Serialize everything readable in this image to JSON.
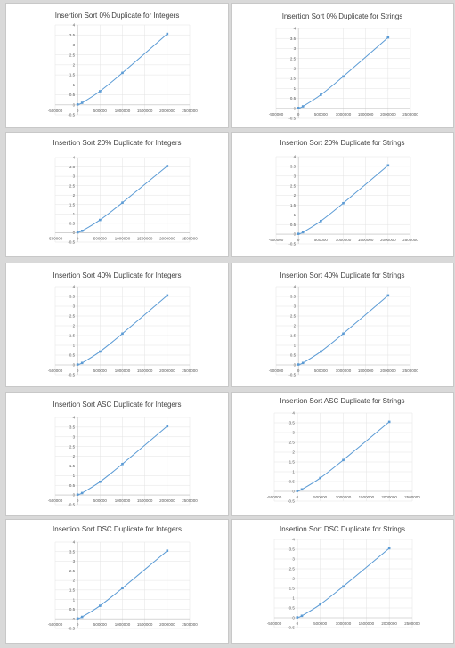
{
  "colors": {
    "series": "#5b9bd5",
    "background": "#d9d9d9"
  },
  "chart_data": [
    {
      "type": "scatter",
      "title": "Insertion Sort 0% Duplicate for Integers",
      "x_ticks": [
        "-500000",
        "0",
        "500000",
        "1000000",
        "1500000",
        "2000000",
        "2500000"
      ],
      "y_ticks": [
        "-0.5",
        "0",
        "0.5",
        "1",
        "1.5",
        "2",
        "2.5",
        "3",
        "3.5",
        "4"
      ],
      "xlim": [
        -500000,
        2500000
      ],
      "ylim": [
        -0.5,
        4
      ],
      "grid": true,
      "smooth": true,
      "x": [
        0,
        100000,
        500000,
        1000000,
        2000000
      ],
      "y": [
        0.02,
        0.1,
        0.68,
        1.6,
        3.55
      ]
    },
    {
      "type": "scatter",
      "title": "Insertion Sort 0% Duplicate for Strings",
      "x_ticks": [
        "-500000",
        "0",
        "500000",
        "1000000",
        "1500000",
        "2000000",
        "2500000"
      ],
      "y_ticks": [
        "-0.5",
        "0",
        "0.5",
        "1",
        "1.5",
        "2",
        "2.5",
        "3",
        "3.5",
        "4"
      ],
      "xlim": [
        -500000,
        2500000
      ],
      "ylim": [
        -0.5,
        4
      ],
      "grid": true,
      "smooth": true,
      "x": [
        0,
        100000,
        500000,
        1000000,
        2000000
      ],
      "y": [
        0.02,
        0.1,
        0.68,
        1.6,
        3.55
      ]
    },
    {
      "type": "scatter",
      "title": "Insertion Sort 20% Duplicate for Integers",
      "x_ticks": [
        "-500000",
        "0",
        "500000",
        "1000000",
        "1500000",
        "2000000",
        "2500000"
      ],
      "y_ticks": [
        "-0.5",
        "0",
        "0.5",
        "1",
        "1.5",
        "2",
        "2.5",
        "3",
        "3.5",
        "4"
      ],
      "xlim": [
        -500000,
        2500000
      ],
      "ylim": [
        -0.5,
        4
      ],
      "grid": true,
      "smooth": true,
      "x": [
        0,
        100000,
        500000,
        1000000,
        2000000
      ],
      "y": [
        0.02,
        0.1,
        0.68,
        1.6,
        3.55
      ]
    },
    {
      "type": "scatter",
      "title": "Insertion Sort 20% Duplicate for Strings",
      "x_ticks": [
        "-500000",
        "0",
        "500000",
        "1000000",
        "1500000",
        "2000000",
        "2500000"
      ],
      "y_ticks": [
        "-0.5",
        "0",
        "0.5",
        "1",
        "1.5",
        "2",
        "2.5",
        "3",
        "3.5",
        "4"
      ],
      "xlim": [
        -500000,
        2500000
      ],
      "ylim": [
        -0.5,
        4
      ],
      "grid": true,
      "smooth": true,
      "x": [
        0,
        100000,
        500000,
        1000000,
        2000000
      ],
      "y": [
        0.02,
        0.1,
        0.68,
        1.6,
        3.55
      ]
    },
    {
      "type": "scatter",
      "title": "Insertion Sort 40% Duplicate for Integers",
      "x_ticks": [
        "-500000",
        "0",
        "500000",
        "1000000",
        "1500000",
        "2000000",
        "2500000"
      ],
      "y_ticks": [
        "-0.5",
        "0",
        "0.5",
        "1",
        "1.5",
        "2",
        "2.5",
        "3",
        "3.5",
        "4"
      ],
      "xlim": [
        -500000,
        2500000
      ],
      "ylim": [
        -0.5,
        4
      ],
      "grid": true,
      "smooth": true,
      "x": [
        0,
        100000,
        500000,
        1000000,
        2000000
      ],
      "y": [
        0.02,
        0.1,
        0.68,
        1.6,
        3.55
      ]
    },
    {
      "type": "scatter",
      "title": "Insertion Sort 40% Duplicate for Strings",
      "x_ticks": [
        "-500000",
        "0",
        "500000",
        "1000000",
        "1500000",
        "2000000",
        "2500000"
      ],
      "y_ticks": [
        "-0.5",
        "0",
        "0.5",
        "1",
        "1.5",
        "2",
        "2.5",
        "3",
        "3.5",
        "4"
      ],
      "xlim": [
        -500000,
        2500000
      ],
      "ylim": [
        -0.5,
        4
      ],
      "grid": true,
      "smooth": true,
      "x": [
        0,
        100000,
        500000,
        1000000,
        2000000
      ],
      "y": [
        0.02,
        0.1,
        0.68,
        1.6,
        3.55
      ]
    },
    {
      "type": "scatter",
      "title": "Insertion Sort ASC Duplicate for Integers",
      "x_ticks": [
        "-500000",
        "0",
        "500000",
        "1000000",
        "1500000",
        "2000000",
        "2500000"
      ],
      "y_ticks": [
        "-0.5",
        "0",
        "0.5",
        "1",
        "1.5",
        "2",
        "2.5",
        "3",
        "3.5",
        "4"
      ],
      "xlim": [
        -500000,
        2500000
      ],
      "ylim": [
        -0.5,
        4
      ],
      "grid": true,
      "smooth": true,
      "x": [
        0,
        100000,
        500000,
        1000000,
        2000000
      ],
      "y": [
        0.02,
        0.1,
        0.68,
        1.6,
        3.55
      ]
    },
    {
      "type": "scatter",
      "title": "Insertion Sort ASC Duplicate for Strings",
      "x_ticks": [
        "-500000",
        "0",
        "500000",
        "1000000",
        "1500000",
        "2000000",
        "2500000"
      ],
      "y_ticks": [
        "-0.5",
        "0",
        "0.5",
        "1",
        "1.5",
        "2",
        "2.5",
        "3",
        "3.5",
        "4"
      ],
      "xlim": [
        -500000,
        2500000
      ],
      "ylim": [
        -0.5,
        4
      ],
      "grid": true,
      "smooth": true,
      "x": [
        0,
        100000,
        500000,
        1000000,
        2000000
      ],
      "y": [
        0.02,
        0.1,
        0.68,
        1.6,
        3.55
      ]
    },
    {
      "type": "scatter",
      "title": "Insertion Sort DSC Duplicate for Integers",
      "x_ticks": [
        "-500000",
        "0",
        "500000",
        "1000000",
        "1500000",
        "2000000",
        "2500000"
      ],
      "y_ticks": [
        "-0.5",
        "0",
        "0.5",
        "1",
        "1.5",
        "2",
        "2.5",
        "3",
        "3.5",
        "4"
      ],
      "xlim": [
        -500000,
        2500000
      ],
      "ylim": [
        -0.5,
        4
      ],
      "grid": true,
      "smooth": true,
      "x": [
        0,
        100000,
        500000,
        1000000,
        2000000
      ],
      "y": [
        0.02,
        0.1,
        0.68,
        1.6,
        3.55
      ]
    },
    {
      "type": "scatter",
      "title": "Insertion Sort DSC Duplicate for Strings",
      "x_ticks": [
        "-500000",
        "0",
        "500000",
        "1000000",
        "1500000",
        "2000000",
        "2500000"
      ],
      "y_ticks": [
        "-0.5",
        "0",
        "0.5",
        "1",
        "1.5",
        "2",
        "2.5",
        "3",
        "3.5",
        "4"
      ],
      "xlim": [
        -500000,
        2500000
      ],
      "ylim": [
        -0.5,
        4
      ],
      "grid": true,
      "smooth": true,
      "x": [
        0,
        100000,
        500000,
        1000000,
        2000000
      ],
      "y": [
        0.02,
        0.1,
        0.68,
        1.6,
        3.55
      ]
    }
  ]
}
